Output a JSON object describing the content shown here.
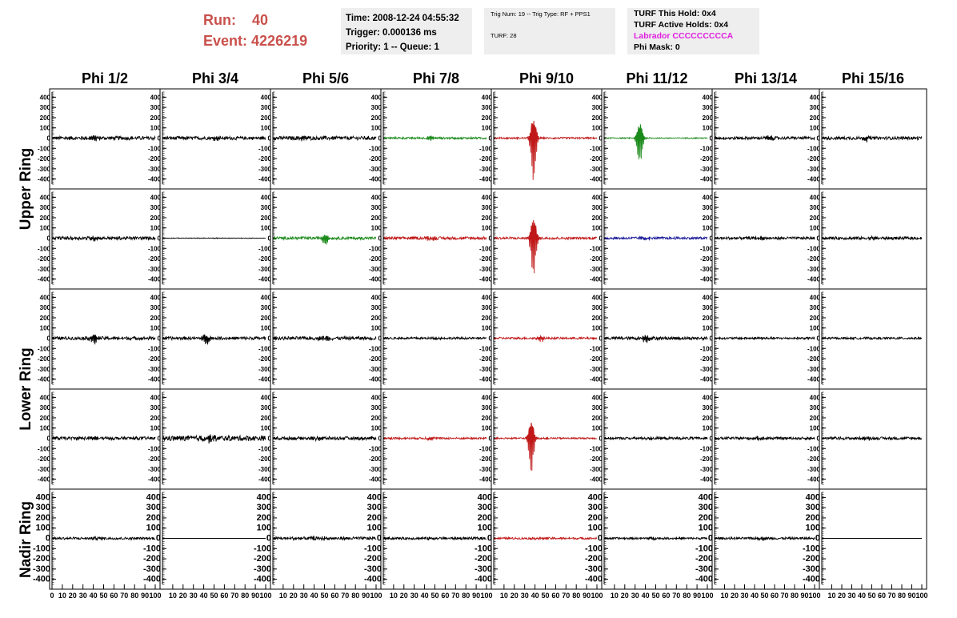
{
  "header": {
    "run_label": "Run:",
    "run_value": "40",
    "event_label": "Event:",
    "event_value": "4226219",
    "colors": {
      "run_text": "#c9504b"
    }
  },
  "info_box_1": {
    "time": "Time: 2008-12-24 04:55:32",
    "trigger": "Trigger: 0.000136 ms",
    "priority": "Priority: 1 -- Queue: 1"
  },
  "info_box_2": {
    "trig": "Trig Num: 19 -- Trig Type: RF + PPS1",
    "turf": "TURF: 28"
  },
  "info_box_3": {
    "hold": "TURF This Hold: 0x4",
    "active": "TURF Active Holds: 0x4",
    "labrador": "Labrador CCCCCCCCCA",
    "phimask": "Phi Mask: 0",
    "colors": {
      "labrador": "#e020e0"
    }
  },
  "chart_data": {
    "type": "line",
    "columns": [
      "Phi 1/2",
      "Phi 3/4",
      "Phi 5/6",
      "Phi 7/8",
      "Phi 9/10",
      "Phi 11/12",
      "Phi 13/14",
      "Phi 15/16"
    ],
    "row_labels": [
      "Upper Ring",
      "Lower Ring",
      "Nadir Ring"
    ],
    "xlim": [
      0,
      100
    ],
    "ylim": [
      -450,
      450
    ],
    "y_ticks": [
      400,
      300,
      200,
      100,
      0,
      -100,
      -200,
      -300,
      -400
    ],
    "x_tick_labels": [
      "0",
      "10",
      "20",
      "30",
      "40",
      "50",
      "60",
      "70",
      "80",
      "90",
      "100"
    ],
    "colors": {
      "black": "#000000",
      "green": "#1a8a1a",
      "red": "#c01818",
      "blue": "#1a1a9a"
    },
    "panels": [
      {
        "row": 0,
        "col": 0,
        "color": "black",
        "amplitude": 18,
        "burst_center": 40,
        "burst_amplitude": 25,
        "burst_width": 5
      },
      {
        "row": 0,
        "col": 1,
        "color": "black",
        "amplitude": 16,
        "burst_center": 52,
        "burst_amplitude": 22,
        "burst_width": 5
      },
      {
        "row": 0,
        "col": 2,
        "color": "black",
        "amplitude": 18,
        "burst_center": 30,
        "burst_amplitude": 20,
        "burst_width": 6
      },
      {
        "row": 0,
        "col": 3,
        "color": "green",
        "amplitude": 10,
        "burst_center": 45,
        "burst_amplitude": 30,
        "burst_width": 3
      },
      {
        "row": 0,
        "col": 4,
        "color": "red",
        "amplitude": 8,
        "burst_center": 38,
        "burst_amplitude": 410,
        "burst_width": 3
      },
      {
        "row": 0,
        "col": 5,
        "color": "green",
        "amplitude": 5,
        "burst_center": 34,
        "burst_amplitude": 290,
        "burst_width": 3
      },
      {
        "row": 0,
        "col": 6,
        "color": "black",
        "amplitude": 14,
        "burst_center": 55,
        "burst_amplitude": 28,
        "burst_width": 4
      },
      {
        "row": 0,
        "col": 7,
        "color": "black",
        "amplitude": 15,
        "burst_center": 45,
        "burst_amplitude": 30,
        "burst_width": 4
      },
      {
        "row": 1,
        "col": 0,
        "color": "black",
        "amplitude": 16,
        "burst_center": 40,
        "burst_amplitude": 20,
        "burst_width": 5
      },
      {
        "row": 1,
        "col": 1,
        "color": "black",
        "amplitude": 3,
        "burst_center": 50,
        "burst_amplitude": 4,
        "burst_width": 5
      },
      {
        "row": 1,
        "col": 2,
        "color": "green",
        "amplitude": 14,
        "burst_center": 50,
        "burst_amplitude": 70,
        "burst_width": 3
      },
      {
        "row": 1,
        "col": 3,
        "color": "red",
        "amplitude": 14,
        "burst_center": 45,
        "burst_amplitude": 25,
        "burst_width": 5
      },
      {
        "row": 1,
        "col": 4,
        "color": "red",
        "amplitude": 12,
        "burst_center": 38,
        "burst_amplitude": 420,
        "burst_width": 3
      },
      {
        "row": 1,
        "col": 5,
        "color": "blue",
        "amplitude": 12,
        "burst_center": 40,
        "burst_amplitude": 20,
        "burst_width": 5
      },
      {
        "row": 1,
        "col": 6,
        "color": "black",
        "amplitude": 13,
        "burst_center": 45,
        "burst_amplitude": 18,
        "burst_width": 5
      },
      {
        "row": 1,
        "col": 7,
        "color": "black",
        "amplitude": 14,
        "burst_center": 50,
        "burst_amplitude": 15,
        "burst_width": 5
      },
      {
        "row": 2,
        "col": 0,
        "color": "black",
        "amplitude": 16,
        "burst_center": 40,
        "burst_amplitude": 55,
        "burst_width": 4
      },
      {
        "row": 2,
        "col": 1,
        "color": "black",
        "amplitude": 15,
        "burst_center": 42,
        "burst_amplitude": 60,
        "burst_width": 4
      },
      {
        "row": 2,
        "col": 2,
        "color": "black",
        "amplitude": 16,
        "burst_center": 50,
        "burst_amplitude": 20,
        "burst_width": 6
      },
      {
        "row": 2,
        "col": 3,
        "color": "black",
        "amplitude": 10,
        "burst_center": 50,
        "burst_amplitude": 12,
        "burst_width": 6
      },
      {
        "row": 2,
        "col": 4,
        "color": "red",
        "amplitude": 10,
        "burst_center": 45,
        "burst_amplitude": 40,
        "burst_width": 4
      },
      {
        "row": 2,
        "col": 5,
        "color": "black",
        "amplitude": 15,
        "burst_center": 40,
        "burst_amplitude": 45,
        "burst_width": 4
      },
      {
        "row": 2,
        "col": 6,
        "color": "black",
        "amplitude": 10,
        "burst_center": 45,
        "burst_amplitude": 15,
        "burst_width": 5
      },
      {
        "row": 2,
        "col": 7,
        "color": "black",
        "amplitude": 10,
        "burst_center": 50,
        "burst_amplitude": 10,
        "burst_width": 5
      },
      {
        "row": 3,
        "col": 0,
        "color": "black",
        "amplitude": 15,
        "burst_center": 40,
        "burst_amplitude": 25,
        "burst_width": 5
      },
      {
        "row": 3,
        "col": 1,
        "color": "black",
        "amplitude": 25,
        "burst_center": 45,
        "burst_amplitude": 30,
        "burst_width": 8
      },
      {
        "row": 3,
        "col": 2,
        "color": "black",
        "amplitude": 16,
        "burst_center": 45,
        "burst_amplitude": 20,
        "burst_width": 6
      },
      {
        "row": 3,
        "col": 3,
        "color": "red",
        "amplitude": 10,
        "burst_center": 45,
        "burst_amplitude": 15,
        "burst_width": 5
      },
      {
        "row": 3,
        "col": 4,
        "color": "red",
        "amplitude": 8,
        "burst_center": 36,
        "burst_amplitude": 330,
        "burst_width": 3
      },
      {
        "row": 3,
        "col": 5,
        "color": "black",
        "amplitude": 12,
        "burst_center": 45,
        "burst_amplitude": 15,
        "burst_width": 5
      },
      {
        "row": 3,
        "col": 6,
        "color": "black",
        "amplitude": 13,
        "burst_center": 45,
        "burst_amplitude": 15,
        "burst_width": 5
      },
      {
        "row": 3,
        "col": 7,
        "color": "black",
        "amplitude": 13,
        "burst_center": 45,
        "burst_amplitude": 15,
        "burst_width": 5
      },
      {
        "row": 4,
        "col": 0,
        "color": "black",
        "amplitude": 12,
        "burst_center": 45,
        "burst_amplitude": 14,
        "burst_width": 6
      },
      {
        "row": 4,
        "col": 1,
        "color": "black",
        "amplitude": 0,
        "burst_center": 50,
        "burst_amplitude": 0,
        "burst_width": 5
      },
      {
        "row": 4,
        "col": 2,
        "color": "black",
        "amplitude": 15,
        "burst_center": 45,
        "burst_amplitude": 18,
        "burst_width": 6
      },
      {
        "row": 4,
        "col": 3,
        "color": "black",
        "amplitude": 12,
        "burst_center": 45,
        "burst_amplitude": 14,
        "burst_width": 6
      },
      {
        "row": 4,
        "col": 4,
        "color": "red",
        "amplitude": 10,
        "burst_center": 45,
        "burst_amplitude": 12,
        "burst_width": 6
      },
      {
        "row": 4,
        "col": 5,
        "color": "black",
        "amplitude": 10,
        "burst_center": 45,
        "burst_amplitude": 12,
        "burst_width": 6
      },
      {
        "row": 4,
        "col": 6,
        "color": "black",
        "amplitude": 11,
        "burst_center": 45,
        "burst_amplitude": 12,
        "burst_width": 6
      },
      {
        "row": 4,
        "col": 7,
        "color": "black",
        "amplitude": 0,
        "burst_center": 50,
        "burst_amplitude": 0,
        "burst_width": 5
      }
    ]
  }
}
